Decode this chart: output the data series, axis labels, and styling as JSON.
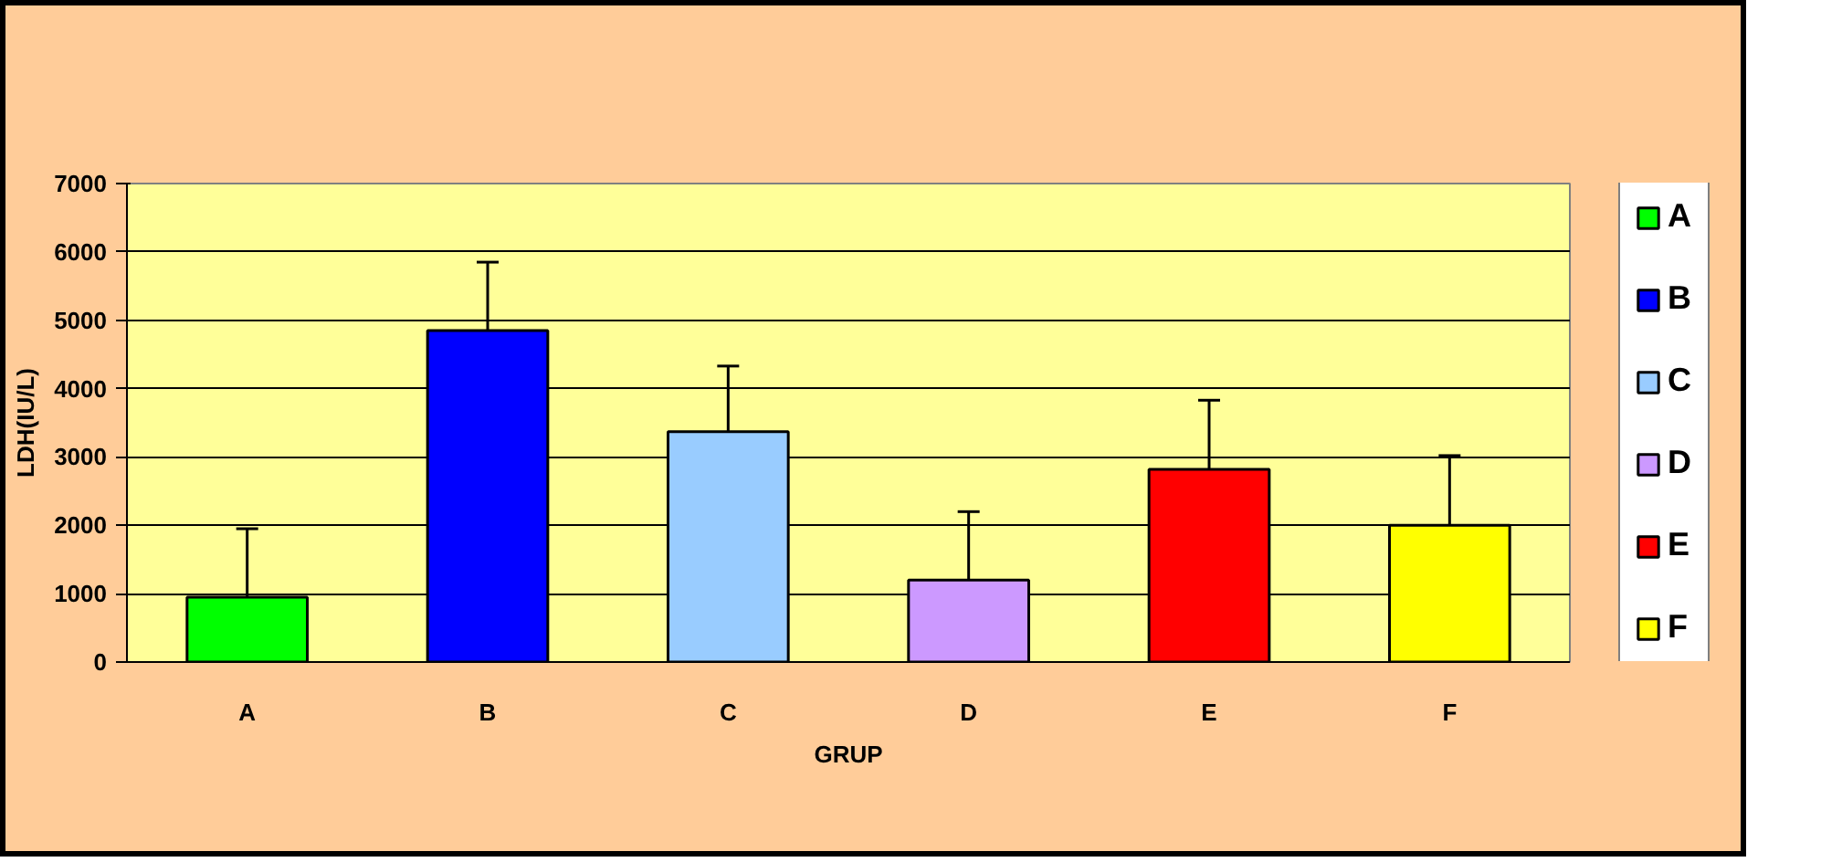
{
  "chart_data": {
    "type": "bar",
    "stacked": true,
    "categories": [
      "A",
      "B",
      "C",
      "D",
      "E",
      "F"
    ],
    "series": [
      {
        "name": "A",
        "color": "#00ff00",
        "values": [
          950,
          null,
          null,
          null,
          null,
          null
        ],
        "errors": [
          [
            950,
            1950
          ],
          null,
          null,
          null,
          null,
          null
        ]
      },
      {
        "name": "B",
        "color": "#0000ff",
        "values": [
          null,
          4850,
          null,
          null,
          null,
          null
        ],
        "errors": [
          null,
          [
            4850,
            5850
          ],
          null,
          null,
          null,
          null
        ]
      },
      {
        "name": "C",
        "color": "#99ccff",
        "values": [
          null,
          null,
          3370,
          null,
          null,
          null
        ],
        "errors": [
          null,
          null,
          [
            3370,
            4330
          ],
          null,
          null,
          null
        ]
      },
      {
        "name": "D",
        "color": "#cc99ff",
        "values": [
          null,
          null,
          null,
          1200,
          null,
          null
        ],
        "errors": [
          null,
          null,
          null,
          [
            1200,
            2200
          ],
          null,
          null
        ]
      },
      {
        "name": "E",
        "color": "#ff0000",
        "values": [
          null,
          null,
          null,
          null,
          2820,
          null
        ],
        "errors": [
          null,
          null,
          null,
          null,
          [
            2820,
            3830
          ],
          null
        ]
      },
      {
        "name": "F",
        "color": "#ffff00",
        "values": [
          null,
          null,
          null,
          null,
          null,
          2000
        ],
        "errors": [
          null,
          null,
          null,
          null,
          null,
          [
            2000,
            3020
          ]
        ]
      }
    ],
    "xlabel": "GRUP",
    "ylabel": "LDH(IU/L)",
    "ylim": [
      0,
      7000
    ],
    "yticks": [
      0,
      1000,
      2000,
      3000,
      4000,
      5000,
      6000,
      7000
    ],
    "grid": "y",
    "legend": "right"
  }
}
